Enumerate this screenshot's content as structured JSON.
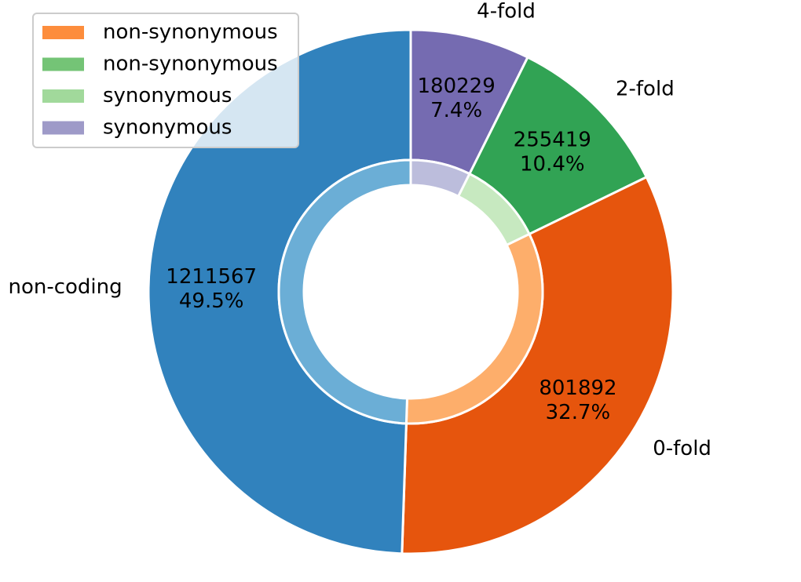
{
  "chart_data": {
    "type": "pie",
    "style": "nested-donut",
    "outer_ring": {
      "slices": [
        {
          "label": "4-fold",
          "value": 180229,
          "percent_text": "7.4%",
          "color": "#756bb1"
        },
        {
          "label": "2-fold",
          "value": 255419,
          "percent_text": "10.4%",
          "color": "#31a354"
        },
        {
          "label": "0-fold",
          "value": 801892,
          "percent_text": "32.7%",
          "color": "#e6550d"
        },
        {
          "label": "non-coding",
          "value": 1211567,
          "percent_text": "49.5%",
          "color": "#3182bd"
        }
      ]
    },
    "inner_ring": {
      "slices": [
        {
          "group": "4-fold",
          "value": 180229,
          "color": "#bcbddc"
        },
        {
          "group": "2-fold",
          "value": 255419,
          "color": "#c7e9c0"
        },
        {
          "group": "0-fold",
          "value": 801892,
          "color": "#fdae6b"
        },
        {
          "group": "non-coding",
          "value": 1211567,
          "color": "#6baed6"
        }
      ]
    },
    "legend": {
      "placement": "top-left",
      "entries": [
        {
          "label": "non-synonymous",
          "color": "#fd8d3c"
        },
        {
          "label": "non-synonymous",
          "color": "#74c476"
        },
        {
          "label": "synonymous",
          "color": "#a1d99b"
        },
        {
          "label": "synonymous",
          "color": "#9e9ac8"
        }
      ]
    },
    "start_angle": "top",
    "direction": "clockwise"
  }
}
